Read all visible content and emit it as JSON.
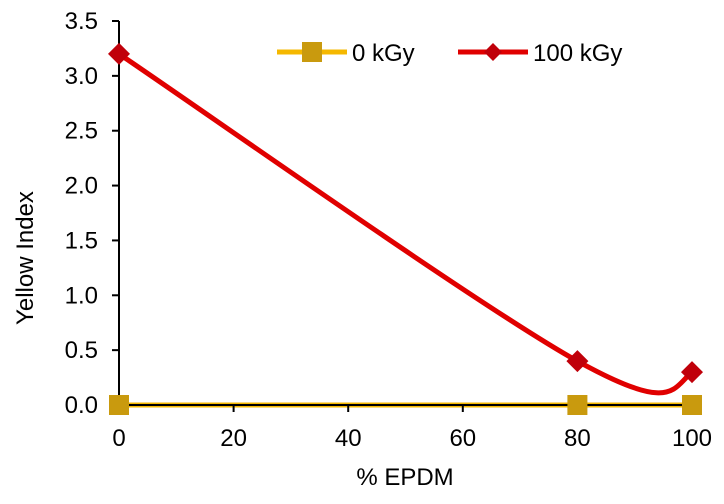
{
  "chart_data": {
    "type": "line",
    "title": "",
    "xlabel": "% EPDM",
    "ylabel": "Yellow Index",
    "xlim": [
      0,
      100
    ],
    "ylim": [
      0,
      3.5
    ],
    "xticks": [
      0,
      20,
      40,
      60,
      80,
      100
    ],
    "xtick_labels": [
      "0",
      "20",
      "40",
      "60",
      "80",
      "100"
    ],
    "yticks": [
      0,
      0.5,
      1,
      1.5,
      2,
      2.5,
      3,
      3.5
    ],
    "ytick_labels": [
      "0.0",
      "0.5",
      "1.0",
      "1.5",
      "2.0",
      "2.5",
      "3.0",
      "3.5"
    ],
    "grid": false,
    "legend_position": "top-right",
    "x": [
      0,
      80,
      100
    ],
    "series": [
      {
        "name": "0 kGy",
        "values": [
          0,
          0,
          0
        ],
        "line_color": "#f5b800",
        "marker_color": "#c99a0e",
        "marker": "square",
        "smooth": false
      },
      {
        "name": "100 kGy",
        "values": [
          3.2,
          0.4,
          0.3
        ],
        "line_color": "#e00000",
        "marker_color": "#c0000a",
        "marker": "diamond",
        "smooth": true
      }
    ]
  }
}
